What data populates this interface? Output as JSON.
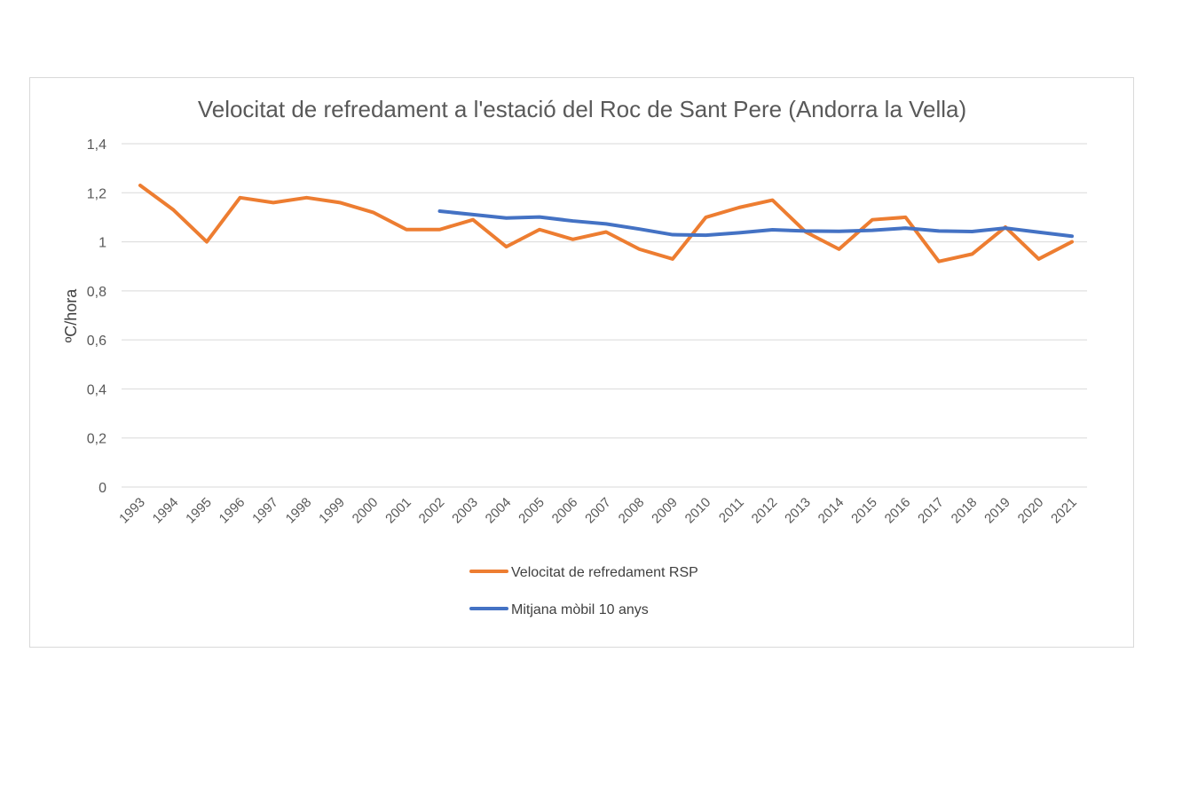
{
  "chart_data": {
    "type": "line",
    "title": "Velocitat de refredament a l'estació del Roc de Sant Pere (Andorra la Vella)",
    "xlabel": "",
    "ylabel": "ºC/hora",
    "ylim": [
      0,
      1.4
    ],
    "y_ticks": [
      "0",
      "0,2",
      "0,4",
      "0,6",
      "0,8",
      "1",
      "1,2",
      "1,4"
    ],
    "y_tick_values": [
      0,
      0.2,
      0.4,
      0.6,
      0.8,
      1.0,
      1.2,
      1.4
    ],
    "grid": true,
    "legend_position": "bottom",
    "categories": [
      "1993",
      "1994",
      "1995",
      "1996",
      "1997",
      "1998",
      "1999",
      "2000",
      "2001",
      "2002",
      "2003",
      "2004",
      "2005",
      "2006",
      "2007",
      "2008",
      "2009",
      "2010",
      "2011",
      "2012",
      "2013",
      "2014",
      "2015",
      "2016",
      "2017",
      "2018",
      "2019",
      "2020",
      "2021"
    ],
    "series": [
      {
        "name": "Velocitat de refredament RSP",
        "color": "#ed7d31",
        "values": [
          1.23,
          1.13,
          1.0,
          1.18,
          1.16,
          1.18,
          1.16,
          1.12,
          1.05,
          1.05,
          1.09,
          0.98,
          1.05,
          1.01,
          1.04,
          0.97,
          0.93,
          1.1,
          1.14,
          1.17,
          1.04,
          0.97,
          1.09,
          1.1,
          0.92,
          0.95,
          1.06,
          0.93,
          1.0
        ]
      },
      {
        "name": "Mitjana mòbil 10 anys",
        "color": "#4472c4",
        "values": [
          null,
          null,
          null,
          null,
          null,
          null,
          null,
          null,
          null,
          1.125,
          1.111,
          1.097,
          1.101,
          1.085,
          1.073,
          1.052,
          1.029,
          1.027,
          1.037,
          1.049,
          1.044,
          1.043,
          1.047,
          1.056,
          1.044,
          1.042,
          1.056,
          1.039,
          1.023
        ]
      }
    ]
  }
}
